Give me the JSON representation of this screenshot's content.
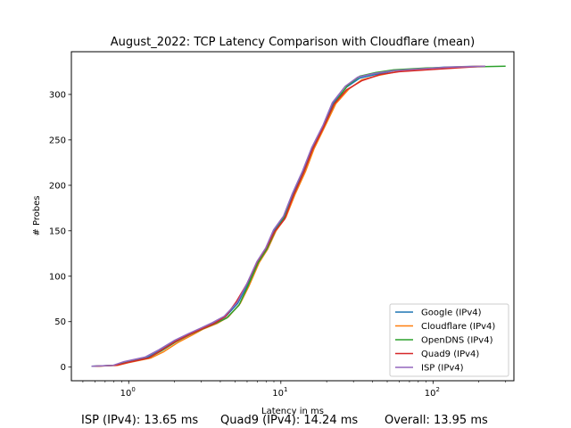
{
  "chart_data": {
    "type": "line",
    "title": "August_2022: TCP Latency Comparison with Cloudflare (mean)",
    "xlabel": "Latency in ms",
    "ylabel": "# Probes",
    "xscale": "log",
    "xlim": [
      0.42,
      340
    ],
    "ylim": [
      -15,
      347
    ],
    "xticks": [
      {
        "value": 1,
        "label": "10",
        "exp": "0"
      },
      {
        "value": 10,
        "label": "10",
        "exp": "1"
      },
      {
        "value": 100,
        "label": "10",
        "exp": "2"
      }
    ],
    "yticks": [
      0,
      50,
      100,
      150,
      200,
      250,
      300
    ],
    "grid": false,
    "legend_position": "bottom-right",
    "series": [
      {
        "name": "Google (IPv4)",
        "color": "#1f77b4",
        "points": [
          [
            0.57,
            1
          ],
          [
            0.8,
            2
          ],
          [
            0.95,
            5
          ],
          [
            1.3,
            10
          ],
          [
            1.6,
            18
          ],
          [
            2.0,
            28
          ],
          [
            2.5,
            36
          ],
          [
            3.0,
            42
          ],
          [
            3.6,
            48
          ],
          [
            4.3,
            55
          ],
          [
            5.2,
            70
          ],
          [
            6.0,
            90
          ],
          [
            7.0,
            115
          ],
          [
            8.0,
            130
          ],
          [
            9.0,
            150
          ],
          [
            10.5,
            165
          ],
          [
            12,
            190
          ],
          [
            14,
            215
          ],
          [
            16,
            240
          ],
          [
            19,
            265
          ],
          [
            22,
            290
          ],
          [
            27,
            308
          ],
          [
            33,
            318
          ],
          [
            42,
            322
          ],
          [
            55,
            326
          ],
          [
            80,
            328
          ],
          [
            120,
            330
          ],
          [
            200,
            331
          ]
        ]
      },
      {
        "name": "Cloudflare (IPv4)",
        "color": "#ff7f0e",
        "points": [
          [
            0.6,
            1
          ],
          [
            0.85,
            2
          ],
          [
            1.0,
            5
          ],
          [
            1.4,
            10
          ],
          [
            1.7,
            17
          ],
          [
            2.1,
            27
          ],
          [
            2.6,
            35
          ],
          [
            3.1,
            42
          ],
          [
            3.8,
            48
          ],
          [
            4.5,
            55
          ],
          [
            5.4,
            70
          ],
          [
            6.2,
            90
          ],
          [
            7.2,
            115
          ],
          [
            8.2,
            130
          ],
          [
            9.3,
            150
          ],
          [
            10.8,
            165
          ],
          [
            12.4,
            190
          ],
          [
            14.5,
            215
          ],
          [
            16.5,
            240
          ],
          [
            19.5,
            265
          ],
          [
            23,
            290
          ],
          [
            28,
            306
          ],
          [
            34,
            316
          ],
          [
            44,
            321
          ],
          [
            58,
            325
          ],
          [
            85,
            328
          ],
          [
            130,
            330
          ],
          [
            210,
            331
          ]
        ]
      },
      {
        "name": "OpenDNS (IPv4)",
        "color": "#2ca02c",
        "points": [
          [
            0.58,
            1
          ],
          [
            0.82,
            2
          ],
          [
            0.97,
            5
          ],
          [
            1.35,
            10
          ],
          [
            1.65,
            18
          ],
          [
            2.05,
            28
          ],
          [
            2.55,
            36
          ],
          [
            3.05,
            42
          ],
          [
            3.7,
            48
          ],
          [
            4.4,
            54
          ],
          [
            5.3,
            68
          ],
          [
            6.1,
            90
          ],
          [
            7.1,
            115
          ],
          [
            8.1,
            130
          ],
          [
            9.2,
            150
          ],
          [
            10.6,
            165
          ],
          [
            12.2,
            190
          ],
          [
            14.2,
            215
          ],
          [
            16.2,
            240
          ],
          [
            19.2,
            265
          ],
          [
            22.5,
            290
          ],
          [
            27.5,
            310
          ],
          [
            33,
            320
          ],
          [
            42,
            324
          ],
          [
            55,
            327
          ],
          [
            90,
            329
          ],
          [
            150,
            330
          ],
          [
            300,
            331
          ]
        ]
      },
      {
        "name": "Quad9 (IPv4)",
        "color": "#d62728",
        "points": [
          [
            0.6,
            1
          ],
          [
            0.83,
            2
          ],
          [
            0.98,
            5
          ],
          [
            1.35,
            10
          ],
          [
            1.62,
            18
          ],
          [
            2.02,
            28
          ],
          [
            2.52,
            36
          ],
          [
            3.02,
            42
          ],
          [
            3.65,
            48
          ],
          [
            4.35,
            56
          ],
          [
            5.1,
            72
          ],
          [
            6.0,
            92
          ],
          [
            7.0,
            116
          ],
          [
            8.0,
            131
          ],
          [
            9.1,
            149
          ],
          [
            10.6,
            163
          ],
          [
            12.1,
            189
          ],
          [
            14.1,
            214
          ],
          [
            16.1,
            239
          ],
          [
            19.1,
            264
          ],
          [
            22.3,
            289
          ],
          [
            27,
            305
          ],
          [
            34,
            315
          ],
          [
            45,
            322
          ],
          [
            60,
            325
          ],
          [
            90,
            327
          ],
          [
            140,
            329
          ],
          [
            220,
            331
          ]
        ]
      },
      {
        "name": "ISP (IPv4)",
        "color": "#9467bd",
        "points": [
          [
            0.57,
            1
          ],
          [
            0.79,
            2
          ],
          [
            0.93,
            6
          ],
          [
            1.28,
            11
          ],
          [
            1.58,
            19
          ],
          [
            1.98,
            29
          ],
          [
            2.48,
            37
          ],
          [
            2.98,
            43
          ],
          [
            3.55,
            49
          ],
          [
            4.25,
            56
          ],
          [
            5.15,
            71
          ],
          [
            5.95,
            91
          ],
          [
            6.95,
            116
          ],
          [
            7.95,
            131
          ],
          [
            8.95,
            151
          ],
          [
            10.4,
            166
          ],
          [
            11.9,
            191
          ],
          [
            13.9,
            216
          ],
          [
            15.9,
            241
          ],
          [
            18.9,
            266
          ],
          [
            21.8,
            291
          ],
          [
            26.5,
            309
          ],
          [
            32,
            319
          ],
          [
            41,
            323
          ],
          [
            54,
            326
          ],
          [
            80,
            328
          ],
          [
            130,
            330
          ],
          [
            220,
            331
          ]
        ]
      }
    ]
  },
  "footer": {
    "isp": "ISP (IPv4): 13.65 ms",
    "quad9": "Quad9 (IPv4): 14.24 ms",
    "overall": "Overall: 13.95 ms"
  }
}
